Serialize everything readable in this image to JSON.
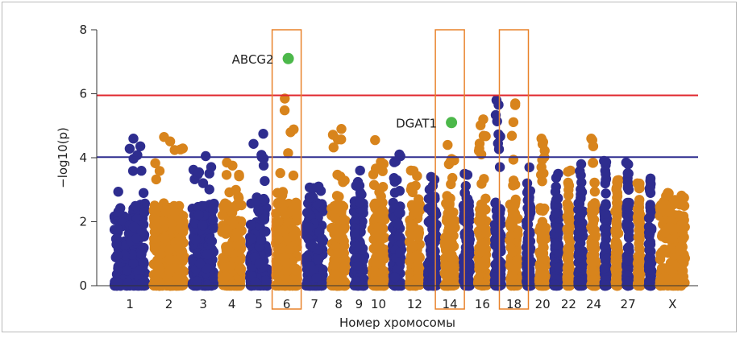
{
  "chart_data": {
    "type": "scatter",
    "plot_kind": "manhattan",
    "title": "",
    "xlabel": "Номер хромосомы",
    "ylabel": "−log10(p)",
    "ylim": [
      0,
      8
    ],
    "yticks": [
      0,
      2,
      4,
      6,
      8
    ],
    "grid": false,
    "x_tick_labels": [
      "1",
      "2",
      "3",
      "4",
      "5",
      "6",
      "7",
      "8",
      "9",
      "10",
      "12",
      "14",
      "16",
      "18",
      "20",
      "22",
      "24",
      "27",
      "X"
    ],
    "chromosomes": [
      {
        "chr": "1",
        "top": 4.6,
        "color": "#2e2d8f"
      },
      {
        "chr": "2",
        "top": 4.65,
        "color": "#d8841c"
      },
      {
        "chr": "3",
        "top": 4.05,
        "color": "#2e2d8f"
      },
      {
        "chr": "4",
        "top": 3.85,
        "color": "#d8841c"
      },
      {
        "chr": "5",
        "top": 4.75,
        "color": "#2e2d8f"
      },
      {
        "chr": "6",
        "top": 5.85,
        "color": "#d8841c"
      },
      {
        "chr": "7",
        "top": 3.1,
        "color": "#2e2d8f"
      },
      {
        "chr": "8",
        "top": 4.9,
        "color": "#d8841c"
      },
      {
        "chr": "9",
        "top": 3.6,
        "color": "#2e2d8f"
      },
      {
        "chr": "10",
        "top": 4.55,
        "color": "#d8841c"
      },
      {
        "chr": "11",
        "top": 4.1,
        "color": "#2e2d8f"
      },
      {
        "chr": "12",
        "top": 3.6,
        "color": "#d8841c"
      },
      {
        "chr": "13",
        "top": 3.4,
        "color": "#2e2d8f"
      },
      {
        "chr": "14",
        "top": 4.4,
        "color": "#d8841c"
      },
      {
        "chr": "15",
        "top": 3.5,
        "color": "#2e2d8f"
      },
      {
        "chr": "16",
        "top": 5.2,
        "color": "#d8841c"
      },
      {
        "chr": "17",
        "top": 5.8,
        "color": "#2e2d8f"
      },
      {
        "chr": "18",
        "top": 5.7,
        "color": "#d8841c"
      },
      {
        "chr": "19",
        "top": 3.7,
        "color": "#2e2d8f"
      },
      {
        "chr": "20",
        "top": 4.6,
        "color": "#d8841c"
      },
      {
        "chr": "21",
        "top": 3.5,
        "color": "#2e2d8f"
      },
      {
        "chr": "22",
        "top": 3.6,
        "color": "#d8841c"
      },
      {
        "chr": "23",
        "top": 3.8,
        "color": "#2e2d8f"
      },
      {
        "chr": "24",
        "top": 4.6,
        "color": "#d8841c"
      },
      {
        "chr": "25",
        "top": 3.9,
        "color": "#2e2d8f"
      },
      {
        "chr": "26",
        "top": 3.3,
        "color": "#d8841c"
      },
      {
        "chr": "27",
        "top": 3.85,
        "color": "#2e2d8f"
      },
      {
        "chr": "28",
        "top": 3.2,
        "color": "#d8841c"
      },
      {
        "chr": "29",
        "top": 3.35,
        "color": "#2e2d8f"
      },
      {
        "chr": "X",
        "top": 2.9,
        "color": "#d8841c"
      }
    ],
    "threshold_lines": [
      {
        "value": 5.95,
        "color": "#e0282f"
      },
      {
        "value": 4.02,
        "color": "#2e2d8f"
      }
    ],
    "highlighted_snps": [
      {
        "label": "ABCG2",
        "chr": "6",
        "value": 7.1,
        "color": "#4cb84a"
      },
      {
        "label": "DGAT1",
        "chr": "14",
        "value": 5.1,
        "color": "#4cb84a"
      }
    ],
    "highlight_boxes": [
      {
        "chr": "6",
        "color": "#e8822a"
      },
      {
        "chr": "14",
        "color": "#e8822a"
      },
      {
        "chr": "18",
        "color": "#e8822a"
      }
    ]
  }
}
